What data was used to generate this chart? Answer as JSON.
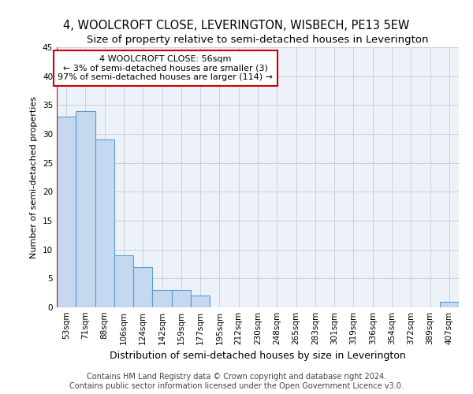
{
  "title": "4, WOOLCROFT CLOSE, LEVERINGTON, WISBECH, PE13 5EW",
  "subtitle": "Size of property relative to semi-detached houses in Leverington",
  "xlabel": "Distribution of semi-detached houses by size in Leverington",
  "ylabel": "Number of semi-detached properties",
  "categories": [
    "53sqm",
    "71sqm",
    "88sqm",
    "106sqm",
    "124sqm",
    "142sqm",
    "159sqm",
    "177sqm",
    "195sqm",
    "212sqm",
    "230sqm",
    "248sqm",
    "265sqm",
    "283sqm",
    "301sqm",
    "319sqm",
    "336sqm",
    "354sqm",
    "372sqm",
    "389sqm",
    "407sqm"
  ],
  "values": [
    33,
    34,
    29,
    9,
    7,
    3,
    3,
    2,
    0,
    0,
    0,
    0,
    0,
    0,
    0,
    0,
    0,
    0,
    0,
    0,
    1
  ],
  "bar_color": "#c5d8f0",
  "bar_edgecolor": "#5b9bd5",
  "annotation_box_text": "4 WOOLCROFT CLOSE: 56sqm\n← 3% of semi-detached houses are smaller (3)\n97% of semi-detached houses are larger (114) →",
  "annotation_box_color": "#ffffff",
  "annotation_box_edgecolor": "#cc0000",
  "redline_color": "#cc0000",
  "ylim": [
    0,
    45
  ],
  "yticks": [
    0,
    5,
    10,
    15,
    20,
    25,
    30,
    35,
    40,
    45
  ],
  "grid_color": "#c8d0dc",
  "bg_color": "#edf2f8",
  "footer_line1": "Contains HM Land Registry data © Crown copyright and database right 2024.",
  "footer_line2": "Contains public sector information licensed under the Open Government Licence v3.0.",
  "title_fontsize": 10.5,
  "subtitle_fontsize": 9.5,
  "xlabel_fontsize": 9,
  "ylabel_fontsize": 8,
  "tick_fontsize": 7.5,
  "footer_fontsize": 7,
  "annotation_fontsize": 8
}
